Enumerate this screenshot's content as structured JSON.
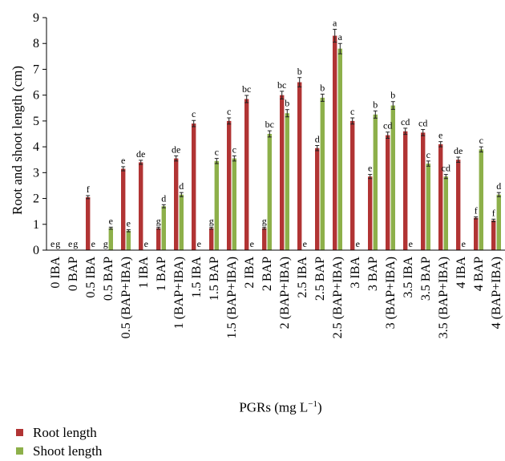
{
  "chart_data": {
    "type": "bar",
    "xlabel": "PGRs (mg L",
    "xlabel_exp": "−1",
    "xlabel_end": ")",
    "ylabel": "Root and shoot length (cm)",
    "ylim": [
      0,
      9
    ],
    "yticks": [
      "0",
      "1",
      "2",
      "3",
      "4",
      "5",
      "6",
      "7",
      "8",
      "9"
    ],
    "grid": false,
    "legend_position": "bottom-left",
    "categories": [
      "0 IBA",
      "0 BAP",
      "0.5 IBA",
      "0.5 BAP",
      "0.5 (BAP+IBA)",
      "1 IBA",
      "1 BAP",
      "1 (BAP+IBA)",
      "1.5 IBA",
      "1.5 BAP",
      "1.5 (BAP+IBA)",
      "2 IBA",
      "2 BAP",
      "2 (BAP+IBA)",
      "2.5 IBA",
      "2.5 BAP",
      "2.5 (BAP+IBA)",
      "3 IBA",
      "3 BAP",
      "3 (BAP+IBA)",
      "3.5 IBA",
      "3.5 BAP",
      "3.5 (BAP+IBA)",
      "4 IBA",
      "4 BAP",
      "4 (BAP+IBA)"
    ],
    "series": [
      {
        "name": "Root length",
        "color": "#b13434",
        "values": [
          0,
          0,
          2.05,
          0,
          3.15,
          3.4,
          0.85,
          3.55,
          4.9,
          0.85,
          5.0,
          5.85,
          0.85,
          6.0,
          6.5,
          3.95,
          8.3,
          5.0,
          2.85,
          4.45,
          4.6,
          4.55,
          4.1,
          3.5,
          1.25,
          1.15
        ],
        "errors": [
          0,
          0,
          0.06,
          0,
          0.08,
          0.08,
          0.04,
          0.1,
          0.12,
          0.04,
          0.12,
          0.14,
          0.04,
          0.15,
          0.18,
          0.1,
          0.25,
          0.12,
          0.08,
          0.12,
          0.12,
          0.12,
          0.1,
          0.1,
          0.04,
          0.05
        ],
        "labels": [
          "e",
          "e",
          "f",
          "g",
          "e",
          "de",
          "g",
          "de",
          "c",
          "g",
          "c",
          "bc",
          "g",
          "bc",
          "b",
          "d",
          "a",
          "c",
          "e",
          "cd",
          "cd",
          "cd",
          "e",
          "de",
          "f",
          "f"
        ]
      },
      {
        "name": "Shoot length",
        "color": "#8db04a",
        "values": [
          0,
          0,
          0,
          0.85,
          0.75,
          0,
          1.7,
          2.15,
          0,
          3.45,
          3.55,
          0,
          4.5,
          5.3,
          0,
          5.9,
          7.8,
          0,
          5.25,
          5.6,
          0,
          3.35,
          2.85,
          0,
          3.9,
          2.15
        ],
        "errors": [
          0,
          0,
          0,
          0.04,
          0.04,
          0,
          0.06,
          0.08,
          0,
          0.1,
          0.1,
          0,
          0.12,
          0.14,
          0,
          0.14,
          0.2,
          0,
          0.14,
          0.15,
          0,
          0.1,
          0.08,
          0,
          0.1,
          0.08
        ],
        "labels": [
          "g",
          "g",
          "e",
          "e",
          "e",
          "e",
          "d",
          "d",
          "e",
          "c",
          "c",
          "e",
          "bc",
          "b",
          "e",
          "b",
          "a",
          "e",
          "b",
          "b",
          "e",
          "c",
          "cd",
          "e",
          "c",
          "d"
        ]
      }
    ]
  }
}
